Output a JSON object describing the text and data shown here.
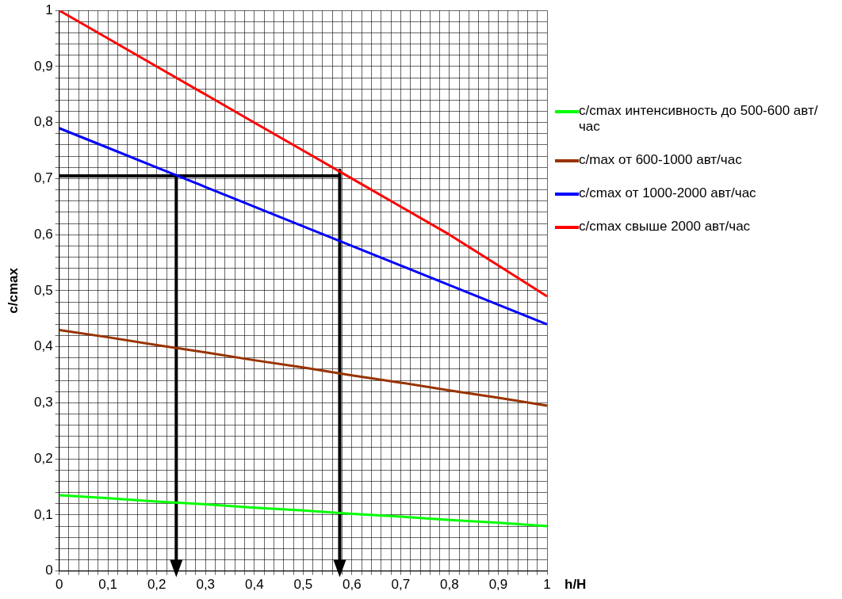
{
  "chart_data": {
    "type": "line",
    "xlabel": "h/H",
    "ylabel": "c/cmax",
    "xlim": [
      0,
      1
    ],
    "ylim": [
      0,
      1
    ],
    "xticks": [
      0,
      {
        "value": 0.02,
        "label": null
      },
      {
        "value": 0.04,
        "label": null
      },
      {
        "value": 0.06,
        "label": null
      },
      {
        "value": 0.08,
        "label": null
      },
      {
        "value": 0.1,
        "label": "0,1"
      },
      {
        "value": 0.12,
        "label": null
      },
      {
        "value": 0.14,
        "label": null
      },
      {
        "value": 0.16,
        "label": null
      },
      {
        "value": 0.18,
        "label": null
      },
      {
        "value": 0.2,
        "label": "0,2"
      },
      {
        "value": 0.22,
        "label": null
      },
      {
        "value": 0.24,
        "label": null
      },
      {
        "value": 0.26,
        "label": null
      },
      {
        "value": 0.28,
        "label": null
      },
      {
        "value": 0.3,
        "label": "0,3"
      },
      {
        "value": 0.32,
        "label": null
      },
      {
        "value": 0.34,
        "label": null
      },
      {
        "value": 0.36,
        "label": null
      },
      {
        "value": 0.38,
        "label": null
      },
      {
        "value": 0.4,
        "label": "0,4"
      },
      {
        "value": 0.42,
        "label": null
      },
      {
        "value": 0.44,
        "label": null
      },
      {
        "value": 0.46,
        "label": null
      },
      {
        "value": 0.48,
        "label": null
      },
      {
        "value": 0.5,
        "label": "0,5"
      },
      {
        "value": 0.52,
        "label": null
      },
      {
        "value": 0.54,
        "label": null
      },
      {
        "value": 0.56,
        "label": null
      },
      {
        "value": 0.58,
        "label": null
      },
      {
        "value": 0.6,
        "label": "0,6"
      },
      {
        "value": 0.62,
        "label": null
      },
      {
        "value": 0.64,
        "label": null
      },
      {
        "value": 0.66,
        "label": null
      },
      {
        "value": 0.68,
        "label": null
      },
      {
        "value": 0.7,
        "label": "0,7"
      },
      {
        "value": 0.72,
        "label": null
      },
      {
        "value": 0.74,
        "label": null
      },
      {
        "value": 0.76,
        "label": null
      },
      {
        "value": 0.78,
        "label": null
      },
      {
        "value": 0.8,
        "label": "0,8"
      },
      {
        "value": 0.82,
        "label": null
      },
      {
        "value": 0.84,
        "label": null
      },
      {
        "value": 0.86,
        "label": null
      },
      {
        "value": 0.88,
        "label": null
      },
      {
        "value": 0.9,
        "label": "0,9"
      },
      {
        "value": 0.92,
        "label": null
      },
      {
        "value": 0.94,
        "label": null
      },
      {
        "value": 0.96,
        "label": null
      },
      {
        "value": 0.98,
        "label": null
      },
      1
    ],
    "yticks": [
      0,
      {
        "value": 0.02,
        "label": null
      },
      {
        "value": 0.04,
        "label": null
      },
      {
        "value": 0.06,
        "label": null
      },
      {
        "value": 0.08,
        "label": null
      },
      {
        "value": 0.1,
        "label": "0,1"
      },
      {
        "value": 0.12,
        "label": null
      },
      {
        "value": 0.14,
        "label": null
      },
      {
        "value": 0.16,
        "label": null
      },
      {
        "value": 0.18,
        "label": null
      },
      {
        "value": 0.2,
        "label": "0,2"
      },
      {
        "value": 0.22,
        "label": null
      },
      {
        "value": 0.24,
        "label": null
      },
      {
        "value": 0.26,
        "label": null
      },
      {
        "value": 0.28,
        "label": null
      },
      {
        "value": 0.3,
        "label": "0,3"
      },
      {
        "value": 0.32,
        "label": null
      },
      {
        "value": 0.34,
        "label": null
      },
      {
        "value": 0.36,
        "label": null
      },
      {
        "value": 0.38,
        "label": null
      },
      {
        "value": 0.4,
        "label": "0,4"
      },
      {
        "value": 0.42,
        "label": null
      },
      {
        "value": 0.44,
        "label": null
      },
      {
        "value": 0.46,
        "label": null
      },
      {
        "value": 0.48,
        "label": null
      },
      {
        "value": 0.5,
        "label": "0,5"
      },
      {
        "value": 0.52,
        "label": null
      },
      {
        "value": 0.54,
        "label": null
      },
      {
        "value": 0.56,
        "label": null
      },
      {
        "value": 0.58,
        "label": null
      },
      {
        "value": 0.6,
        "label": "0,6"
      },
      {
        "value": 0.62,
        "label": null
      },
      {
        "value": 0.64,
        "label": null
      },
      {
        "value": 0.66,
        "label": null
      },
      {
        "value": 0.68,
        "label": null
      },
      {
        "value": 0.7,
        "label": "0,7"
      },
      {
        "value": 0.72,
        "label": null
      },
      {
        "value": 0.74,
        "label": null
      },
      {
        "value": 0.76,
        "label": null
      },
      {
        "value": 0.78,
        "label": null
      },
      {
        "value": 0.8,
        "label": "0,8"
      },
      {
        "value": 0.82,
        "label": null
      },
      {
        "value": 0.84,
        "label": null
      },
      {
        "value": 0.86,
        "label": null
      },
      {
        "value": 0.88,
        "label": null
      },
      {
        "value": 0.9,
        "label": "0,9"
      },
      {
        "value": 0.92,
        "label": null
      },
      {
        "value": 0.94,
        "label": null
      },
      {
        "value": 0.96,
        "label": null
      },
      {
        "value": 0.98,
        "label": null
      },
      1
    ],
    "grid": true,
    "legend": "right",
    "marker": "none",
    "line_style": "solid",
    "x": [
      0,
      0.1,
      0.2,
      0.3,
      0.4,
      0.5,
      0.6,
      0.7,
      0.8,
      0.9,
      1
    ],
    "series": [
      {
        "name": "c/cmax интенсивность до 500-600 авт/час",
        "color": "#00ff00",
        "values": [
          0.135,
          0.13,
          0.124,
          0.119,
          0.113,
          0.108,
          0.102,
          0.097,
          0.091,
          0.086,
          0.08
        ]
      },
      {
        "name": "c/max от 600-1000 авт/час",
        "color": "#993300",
        "values": [
          0.43,
          0.417,
          0.403,
          0.39,
          0.376,
          0.363,
          0.349,
          0.336,
          0.322,
          0.309,
          0.295
        ]
      },
      {
        "name": "c/cmax от 1000-2000 авт/час",
        "color": "#0000ff",
        "values": [
          0.79,
          0.755,
          0.72,
          0.685,
          0.65,
          0.615,
          0.58,
          0.545,
          0.51,
          0.475,
          0.44
        ]
      },
      {
        "name": "c/cmax свыше 2000 авт/час",
        "color": "#ff0000",
        "values": [
          1,
          0.95,
          0.9,
          0.85,
          0.8,
          0.75,
          0.7,
          0.65,
          0.6,
          0.545,
          0.49
        ]
      },
      {
        "type": "line",
        "color": "#000000",
        "x": [
          0,
          0.575
        ],
        "values": [
          0.705,
          0.705
        ]
      },
      {
        "type": "line",
        "color": "#000000",
        "marker": "triangle",
        "x": [
          0.24,
          0.24
        ],
        "values": [
          0.705,
          0
        ]
      },
      {
        "type": "line",
        "color": "#000000",
        "marker": "triangle",
        "x": [
          0.575,
          0.575
        ],
        "values": [
          0.715,
          0
        ]
      }
    ]
  }
}
